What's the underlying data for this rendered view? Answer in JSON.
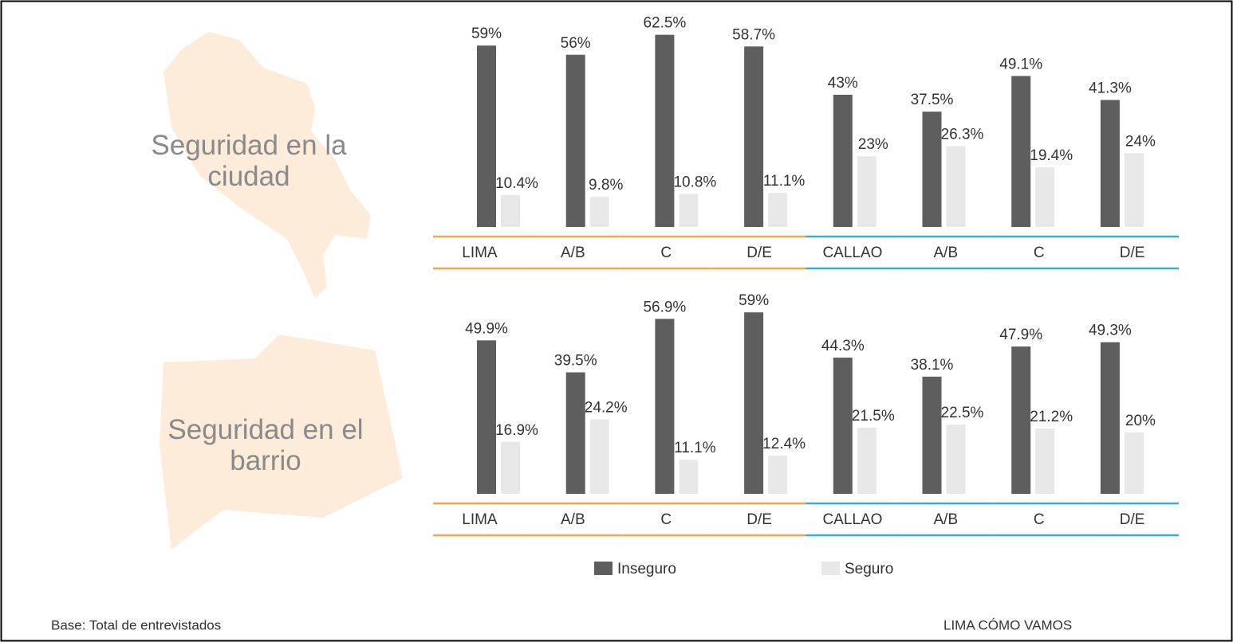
{
  "chart_data": [
    {
      "type": "bar",
      "title": "Seguridad en la ciudad",
      "categories": [
        "LIMA",
        "A/B",
        "C",
        "D/E",
        "CALLAO",
        "A/B",
        "C",
        "D/E"
      ],
      "category_colors": [
        "#f5a54a",
        "#f5a54a",
        "#f5a54a",
        "#f5a54a",
        "#3aa9dc",
        "#3aa9dc",
        "#3aa9dc",
        "#3aa9dc"
      ],
      "ylim": [
        0,
        65
      ],
      "series": [
        {
          "name": "Inseguro",
          "color": "#5e5e5e",
          "values": [
            59,
            56,
            62.5,
            58.7,
            43,
            37.5,
            49.1,
            41.3
          ],
          "value_labels": [
            "59%",
            "56%",
            "62.5%",
            "58.7%",
            "43%",
            "37.5%",
            "49.1%",
            "41.3%"
          ]
        },
        {
          "name": "Seguro",
          "color": "#e8e8e8",
          "values": [
            10.4,
            9.8,
            10.8,
            11.1,
            23,
            26.3,
            19.4,
            24
          ],
          "value_labels": [
            "10.4%",
            "9.8%",
            "10.8%",
            "11.1%",
            "23%",
            "26.3%",
            "19.4%",
            "24%"
          ]
        }
      ]
    },
    {
      "type": "bar",
      "title": "Seguridad en el barrio",
      "categories": [
        "LIMA",
        "A/B",
        "C",
        "D/E",
        "CALLAO",
        "A/B",
        "C",
        "D/E"
      ],
      "category_colors": [
        "#f5a54a",
        "#f5a54a",
        "#f5a54a",
        "#f5a54a",
        "#3aa9dc",
        "#3aa9dc",
        "#3aa9dc",
        "#3aa9dc"
      ],
      "ylim": [
        0,
        65
      ],
      "series": [
        {
          "name": "Inseguro",
          "color": "#5e5e5e",
          "values": [
            49.9,
            39.5,
            56.9,
            59,
            44.3,
            38.1,
            47.9,
            49.3
          ],
          "value_labels": [
            "49.9%",
            "39.5%",
            "56.9%",
            "59%",
            "44.3%",
            "38.1%",
            "47.9%",
            "49.3%"
          ]
        },
        {
          "name": "Seguro",
          "color": "#e8e8e8",
          "values": [
            16.9,
            24.2,
            11.1,
            12.4,
            21.5,
            22.5,
            21.2,
            20
          ],
          "value_labels": [
            "16.9%",
            "24.2%",
            "11.1%",
            "12.4%",
            "21.5%",
            "22.5%",
            "21.2%",
            "20%"
          ]
        }
      ]
    }
  ],
  "footer": {
    "note": "Base: Total de entrevistados",
    "source": "LIMA CÓMO VAMOS"
  }
}
